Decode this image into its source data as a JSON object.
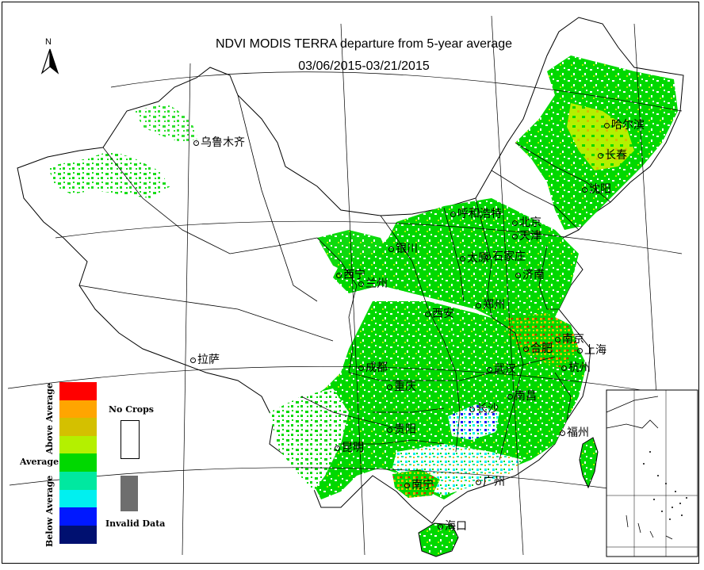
{
  "title": {
    "line1": "NDVI MODIS TERRA departure from 5-year average",
    "line2": "03/06/2015-03/21/2015"
  },
  "north_arrow": {
    "label": "N",
    "icon": "north-arrow-icon"
  },
  "legend": {
    "classes": [
      {
        "color": "#ff0000",
        "group": "Above Average"
      },
      {
        "color": "#ffa500",
        "group": "Above Average"
      },
      {
        "color": "#d4c000",
        "group": "Above Average"
      },
      {
        "color": "#b4f000",
        "group": "Above Average"
      },
      {
        "color": "#00d800",
        "group": "Average"
      },
      {
        "color": "#00e8a0",
        "group": "Below Average"
      },
      {
        "color": "#00f0f0",
        "group": "Below Average"
      },
      {
        "color": "#0018ff",
        "group": "Below Average"
      },
      {
        "color": "#001070",
        "group": "Below Average"
      }
    ],
    "above_label": "Above Average",
    "average_label": "Average",
    "below_label": "Below Average",
    "no_crops_label": "No Crops",
    "invalid_label": "Invalid Data",
    "no_crops_color": "#ffffff",
    "invalid_color": "#6e6e6e"
  },
  "cities": [
    {
      "name": "乌鲁木齐"
    },
    {
      "name": "哈尔滨"
    },
    {
      "name": "长春"
    },
    {
      "name": "沈阳"
    },
    {
      "name": "呼和浩特"
    },
    {
      "name": "北京"
    },
    {
      "name": "天津"
    },
    {
      "name": "银川"
    },
    {
      "name": "太原"
    },
    {
      "name": "石家庄"
    },
    {
      "name": "西宁"
    },
    {
      "name": "兰州"
    },
    {
      "name": "济南"
    },
    {
      "name": "郑州"
    },
    {
      "name": "西安"
    },
    {
      "name": "南京"
    },
    {
      "name": "合肥"
    },
    {
      "name": "上海"
    },
    {
      "name": "拉萨"
    },
    {
      "name": "成都"
    },
    {
      "name": "武汉"
    },
    {
      "name": "杭州"
    },
    {
      "name": "重庆"
    },
    {
      "name": "南昌"
    },
    {
      "name": "长沙"
    },
    {
      "name": "贵阳"
    },
    {
      "name": "福州"
    },
    {
      "name": "昆明"
    },
    {
      "name": "南宁"
    },
    {
      "name": "广州"
    },
    {
      "name": "海口"
    }
  ],
  "colors": {
    "average_green": "#00d800",
    "light_green": "#b4f000",
    "border": "#000000",
    "background": "#ffffff"
  }
}
